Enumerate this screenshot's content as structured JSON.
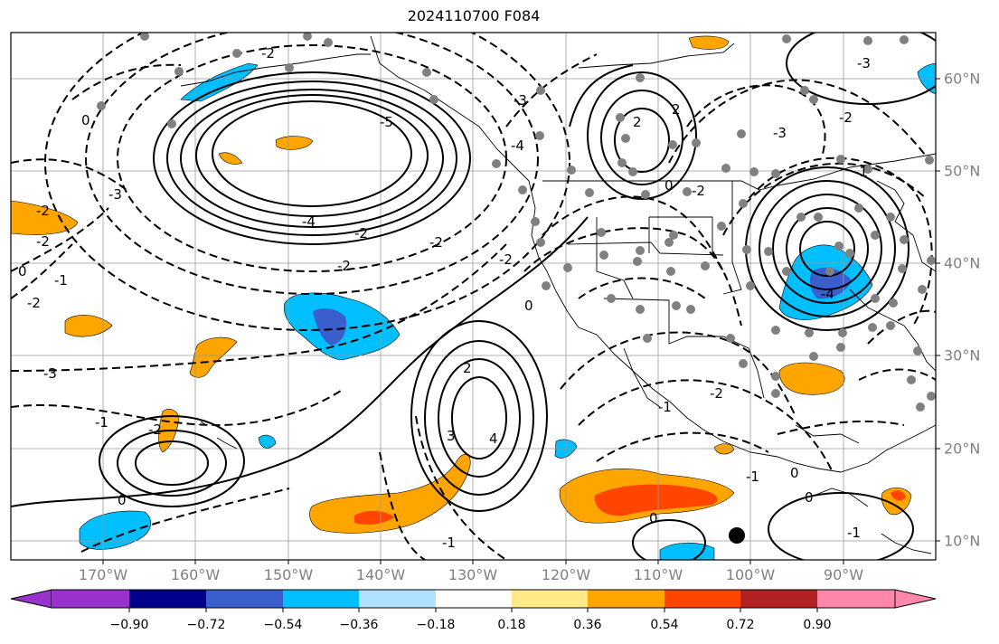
{
  "title": "2024110700 F084",
  "map": {
    "projection": "PlateCarree",
    "lon_range": [
      -180,
      -80
    ],
    "lat_range": [
      8,
      65
    ],
    "lon_ticks": [
      "170°W",
      "160°W",
      "150°W",
      "140°W",
      "130°W",
      "120°W",
      "110°W",
      "100°W",
      "90°W"
    ],
    "lat_ticks": [
      "60°N",
      "50°N",
      "40°N",
      "30°N",
      "20°N",
      "10°N"
    ],
    "contour_labels": [
      "-2",
      "0",
      "-2",
      "-2",
      "0",
      "-3",
      "-5",
      "-4",
      "-2",
      "-2",
      "-2",
      "-3",
      "-4",
      "-1",
      "-2",
      "-2",
      "-3",
      "-1",
      "0",
      "-2",
      "0",
      "2",
      "3",
      "4",
      "-1",
      "-2",
      "2",
      "2",
      "-2",
      "-2",
      "-3",
      "0",
      "-1",
      "0",
      "0",
      "-3",
      "-4",
      "0",
      "-1",
      "-1",
      "-1"
    ],
    "marker": "storm-center-dot"
  },
  "colorbar": {
    "ticks": [
      "−0.90",
      "−0.72",
      "−0.54",
      "−0.36",
      "−0.18",
      "0.18",
      "0.36",
      "0.54",
      "0.72",
      "0.90"
    ],
    "colors": [
      "#9932cc",
      "#00008b",
      "#3a5fcd",
      "#00bfff",
      "#b0e2ff",
      "#ffffff",
      "#ffe989",
      "#ffa500",
      "#ff4500",
      "#b22222",
      "#ff88aa"
    ]
  }
}
